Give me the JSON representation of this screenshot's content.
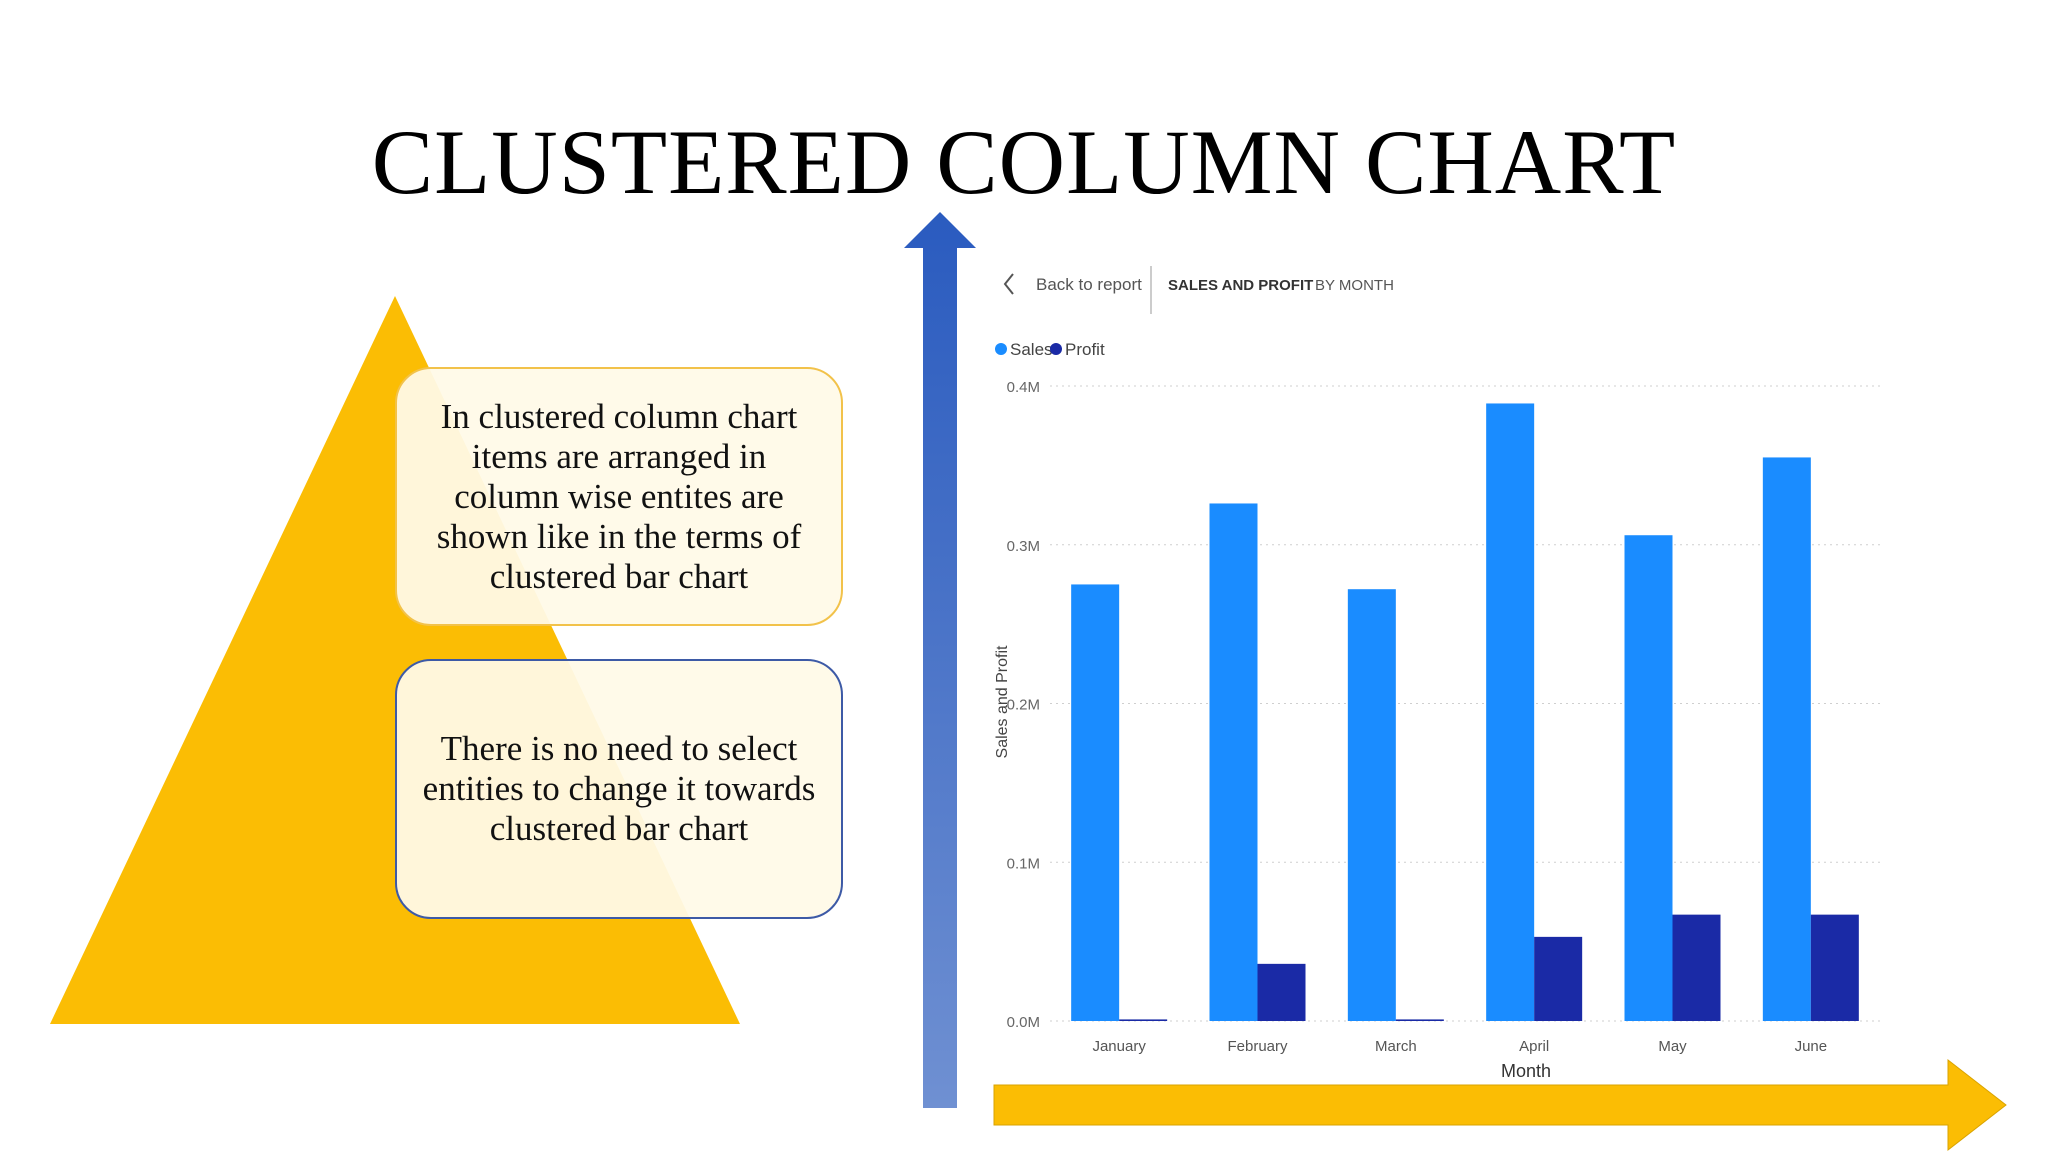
{
  "slide": {
    "title": "CLUSTERED COLUMN CHART",
    "callouts": [
      "In clustered column chart items are arranged in column wise entites are shown like in the terms of clustered bar chart",
      "There is no need to select entities to change it towards clustered bar chart"
    ]
  },
  "report": {
    "back_label": "Back to report",
    "heading": "SALES AND PROFIT",
    "subheading": "BY MONTH"
  },
  "colors": {
    "pyramid": "#fbbd04",
    "sales": "#1a8cff",
    "profit": "#1a2aa6",
    "up_arrow": "#3f6fc8",
    "right_arrow": "#fbbd04"
  },
  "chart_data": {
    "type": "bar",
    "title": "",
    "xlabel": "Month",
    "ylabel": "Sales and Profit",
    "categories": [
      "January",
      "February",
      "March",
      "April",
      "May",
      "June"
    ],
    "series": [
      {
        "name": "Sales",
        "values": [
          0.275,
          0.326,
          0.272,
          0.389,
          0.306,
          0.355
        ]
      },
      {
        "name": "Profit",
        "values": [
          0.001,
          0.036,
          0.001,
          0.053,
          0.067,
          0.067
        ]
      }
    ],
    "ylim": [
      0,
      0.4
    ],
    "yticks": [
      0,
      0.1,
      0.2,
      0.3,
      0.4
    ],
    "ytick_labels": [
      "0.0M",
      "0.1M",
      "0.2M",
      "0.3M",
      "0.4M"
    ],
    "grid": true,
    "legend_position": "top-left"
  }
}
